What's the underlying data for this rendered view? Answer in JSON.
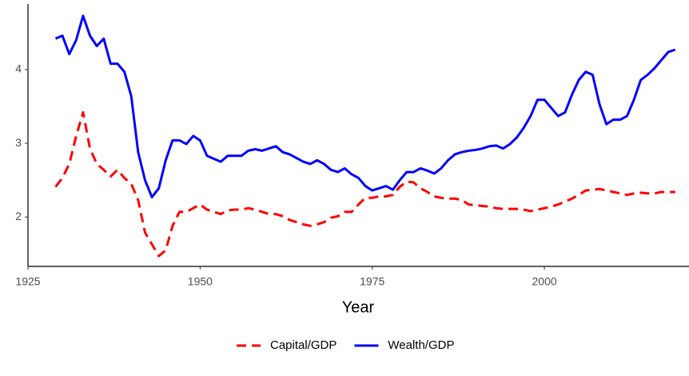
{
  "chart_data": {
    "type": "line",
    "x_label": "Year",
    "x": [
      1929,
      1930,
      1931,
      1932,
      1933,
      1934,
      1935,
      1936,
      1937,
      1938,
      1939,
      1940,
      1941,
      1942,
      1943,
      1944,
      1945,
      1946,
      1947,
      1948,
      1949,
      1950,
      1951,
      1952,
      1953,
      1954,
      1955,
      1956,
      1957,
      1958,
      1959,
      1960,
      1961,
      1962,
      1963,
      1964,
      1965,
      1966,
      1967,
      1968,
      1969,
      1970,
      1971,
      1972,
      1973,
      1974,
      1975,
      1976,
      1977,
      1978,
      1979,
      1980,
      1981,
      1982,
      1983,
      1984,
      1985,
      1986,
      1987,
      1988,
      1989,
      1990,
      1991,
      1992,
      1993,
      1994,
      1995,
      1996,
      1997,
      1998,
      1999,
      2000,
      2001,
      2002,
      2003,
      2004,
      2005,
      2006,
      2007,
      2008,
      2009,
      2010,
      2011,
      2012,
      2013,
      2014,
      2015,
      2016,
      2017,
      2018,
      2019
    ],
    "series": [
      {
        "name": "Capital/GDP",
        "color": "#ff0000",
        "dashed": true,
        "values": [
          2.41,
          2.53,
          2.72,
          3.1,
          3.42,
          2.93,
          2.72,
          2.64,
          2.55,
          2.64,
          2.53,
          2.45,
          2.23,
          1.79,
          1.63,
          1.47,
          1.55,
          1.88,
          2.07,
          2.07,
          2.12,
          2.17,
          2.1,
          2.07,
          2.04,
          2.09,
          2.1,
          2.1,
          2.12,
          2.1,
          2.07,
          2.04,
          2.04,
          2.01,
          1.96,
          1.93,
          1.9,
          1.88,
          1.9,
          1.93,
          1.99,
          2.01,
          2.07,
          2.07,
          2.17,
          2.26,
          2.26,
          2.28,
          2.28,
          2.3,
          2.41,
          2.48,
          2.47,
          2.39,
          2.34,
          2.28,
          2.26,
          2.25,
          2.25,
          2.23,
          2.17,
          2.16,
          2.15,
          2.14,
          2.12,
          2.11,
          2.11,
          2.11,
          2.1,
          2.08,
          2.1,
          2.12,
          2.14,
          2.17,
          2.21,
          2.25,
          2.3,
          2.36,
          2.37,
          2.38,
          2.36,
          2.34,
          2.32,
          2.3,
          2.32,
          2.33,
          2.32,
          2.32,
          2.34,
          2.34,
          2.34
        ]
      },
      {
        "name": "Wealth/GDP",
        "color": "#0000ff",
        "dashed": false,
        "values": [
          4.42,
          4.46,
          4.21,
          4.4,
          4.73,
          4.46,
          4.32,
          4.42,
          4.08,
          4.08,
          3.97,
          3.64,
          2.88,
          2.5,
          2.27,
          2.39,
          2.77,
          3.04,
          3.04,
          2.99,
          3.1,
          3.04,
          2.83,
          2.79,
          2.75,
          2.83,
          2.83,
          2.83,
          2.9,
          2.92,
          2.9,
          2.93,
          2.96,
          2.88,
          2.85,
          2.8,
          2.75,
          2.72,
          2.77,
          2.72,
          2.64,
          2.61,
          2.66,
          2.58,
          2.53,
          2.42,
          2.36,
          2.39,
          2.42,
          2.37,
          2.5,
          2.61,
          2.61,
          2.66,
          2.63,
          2.59,
          2.66,
          2.77,
          2.85,
          2.88,
          2.9,
          2.91,
          2.93,
          2.96,
          2.97,
          2.93,
          2.99,
          3.08,
          3.21,
          3.37,
          3.59,
          3.59,
          3.48,
          3.37,
          3.42,
          3.66,
          3.86,
          3.97,
          3.93,
          3.53,
          3.26,
          3.32,
          3.32,
          3.37,
          3.59,
          3.86,
          3.93,
          4.02,
          4.13,
          4.24,
          4.27
        ]
      }
    ],
    "xlim": [
      1925,
      2021
    ],
    "xticks": [
      1925,
      1950,
      1975,
      2000
    ],
    "ylim": [
      1.33,
      4.89
    ],
    "yticks": [
      2,
      3,
      4
    ],
    "grid": false,
    "legend": "bottom"
  }
}
